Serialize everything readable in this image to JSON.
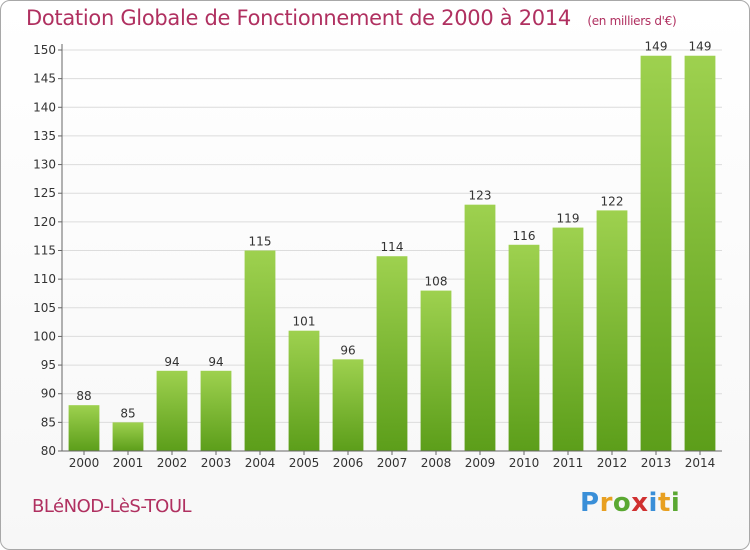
{
  "title": "Dotation Globale de Fonctionnement de 2000 à 2014",
  "subtitle": "(en milliers d'€)",
  "commune": "BLéNOD-LèS-TOUL",
  "logo": {
    "letters": [
      "P",
      "r",
      "o",
      "x",
      "i",
      "t",
      "i"
    ],
    "colors": [
      "#3a8fd8",
      "#e8a021",
      "#5aa832",
      "#d03030",
      "#3a8fd8",
      "#e8a021",
      "#5aa832"
    ]
  },
  "colors": {
    "bar_top": "#9ed14f",
    "bar_bottom": "#5c9e1a",
    "grid": "#dcdcdc",
    "axis": "#666666"
  },
  "chart_data": {
    "type": "bar",
    "title": "Dotation Globale de Fonctionnement de 2000 à 2014",
    "subtitle": "(en milliers d'€)",
    "xlabel": "",
    "ylabel": "",
    "categories": [
      "2000",
      "2001",
      "2002",
      "2003",
      "2004",
      "2005",
      "2006",
      "2007",
      "2008",
      "2009",
      "2010",
      "2011",
      "2012",
      "2013",
      "2014"
    ],
    "values": [
      88,
      85,
      94,
      94,
      115,
      101,
      96,
      114,
      108,
      123,
      116,
      119,
      122,
      149,
      149
    ],
    "ylim": [
      80,
      150
    ],
    "yticks": [
      80,
      85,
      90,
      95,
      100,
      105,
      110,
      115,
      120,
      125,
      130,
      135,
      140,
      145,
      150
    ],
    "grid": true,
    "legend": "none"
  }
}
